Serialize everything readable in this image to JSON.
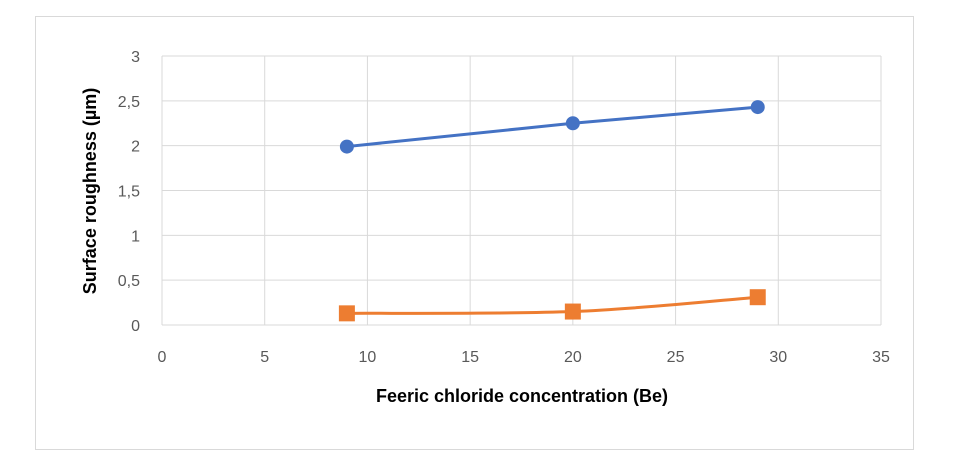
{
  "chart_data": {
    "type": "line",
    "title": "",
    "xlabel": "Feeric chloride concentration (Be)",
    "ylabel": "Surface roughness (µm)",
    "xlim": [
      0,
      35
    ],
    "ylim": [
      0,
      3
    ],
    "x_ticks": [
      0,
      5,
      10,
      15,
      20,
      25,
      30,
      35
    ],
    "x_tick_labels": [
      "0",
      "5",
      "10",
      "15",
      "20",
      "25",
      "30",
      "35"
    ],
    "y_ticks": [
      0,
      0.5,
      1,
      1.5,
      2,
      2.5,
      3
    ],
    "y_tick_labels": [
      "0",
      "0,5",
      "1",
      "1,5",
      "2",
      "2,5",
      "3"
    ],
    "grid": true,
    "legend": "none",
    "series": [
      {
        "x": [
          9,
          20,
          29
        ],
        "values": [
          1.99,
          2.25,
          2.43
        ],
        "color": "#4472c4",
        "marker": "circle",
        "smooth": false
      },
      {
        "x": [
          9,
          20,
          29
        ],
        "values": [
          0.13,
          0.15,
          0.31
        ],
        "color": "#ed7d31",
        "marker": "square",
        "smooth": true
      }
    ]
  }
}
